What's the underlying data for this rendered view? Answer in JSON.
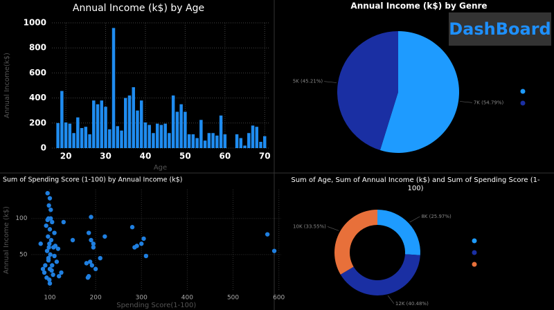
{
  "badge": "DashBoard",
  "chart_data": [
    {
      "type": "bar",
      "title": "Annual Income (k$) by Age",
      "x_label": "Age",
      "y_label": "Annual Income(k$)",
      "color": "#1f8cf0",
      "x": [
        18,
        19,
        20,
        21,
        22,
        23,
        24,
        25,
        26,
        27,
        28,
        29,
        30,
        31,
        32,
        33,
        34,
        35,
        36,
        37,
        38,
        39,
        40,
        41,
        42,
        43,
        44,
        45,
        46,
        47,
        48,
        49,
        50,
        51,
        52,
        53,
        54,
        55,
        56,
        57,
        58,
        59,
        60,
        63,
        64,
        65,
        66,
        67,
        68,
        69,
        70
      ],
      "values": [
        200,
        456,
        205,
        195,
        120,
        245,
        160,
        170,
        110,
        380,
        350,
        380,
        330,
        150,
        959,
        175,
        140,
        400,
        420,
        486,
        300,
        380,
        205,
        185,
        120,
        195,
        185,
        195,
        120,
        420,
        290,
        350,
        290,
        110,
        110,
        80,
        225,
        60,
        120,
        120,
        100,
        260,
        110,
        110,
        80,
        20,
        120,
        180,
        170,
        50,
        95
      ],
      "xlim": [
        16.5,
        71
      ],
      "xticks": [
        20,
        30,
        40,
        50,
        60,
        70
      ],
      "ylim": [
        0,
        1000
      ],
      "yticks": [
        0,
        200,
        400,
        600,
        800,
        1000
      ],
      "grid": true
    },
    {
      "type": "pie",
      "title": "Annual Income (k$) by Genre",
      "values": [
        54.79,
        45.21
      ],
      "value_labels": [
        "7K (54.79%)",
        "5K (45.21%)"
      ],
      "colors": [
        "#1e9bff",
        "#1a2fa3"
      ]
    },
    {
      "type": "scatter",
      "title": "Sum of Spending Score (1-100) by Annual Income (k$)",
      "x_label": "Spending Score(1-100)",
      "y_label": "Annual Income (k$)",
      "color": "#1f7fe0",
      "x": [
        95,
        100,
        98,
        102,
        97,
        105,
        92,
        100,
        110,
        96,
        103,
        99,
        108,
        94,
        101,
        97,
        115,
        90,
        85,
        88,
        120,
        125,
        100,
        105,
        98,
        112,
        80,
        95,
        102,
        130,
        118,
        99,
        93,
        107,
        104,
        150,
        185,
        190,
        195,
        188,
        192,
        200,
        185,
        210,
        190,
        195,
        220,
        280,
        290,
        300,
        305,
        310,
        285,
        575,
        590,
        100,
        97,
        110,
        180,
        183
      ],
      "y": [
        135,
        128,
        118,
        112,
        100,
        95,
        90,
        85,
        80,
        75,
        70,
        65,
        60,
        55,
        50,
        45,
        40,
        35,
        30,
        25,
        20,
        25,
        30,
        35,
        60,
        62,
        65,
        98,
        100,
        95,
        58,
        15,
        18,
        22,
        28,
        70,
        80,
        70,
        65,
        40,
        35,
        30,
        20,
        45,
        102,
        60,
        75,
        88,
        62,
        65,
        72,
        48,
        60,
        78,
        55,
        10,
        42,
        48,
        38,
        18
      ],
      "xlim": [
        60,
        605
      ],
      "xticks": [
        100,
        200,
        300,
        400,
        500,
        600
      ],
      "ylim": [
        0,
        140
      ],
      "yticks": [
        50,
        100
      ],
      "grid": true
    },
    {
      "type": "donut",
      "title": "Sum of Age, Sum of Annual Income (k$) and Sum of Spending Score (1-100)",
      "values": [
        25.97,
        40.48,
        33.55
      ],
      "value_labels": [
        "8K (25.97%)",
        "12K (40.48%)",
        "10K (33.55%)"
      ],
      "colors": [
        "#1e9bff",
        "#1a2fa3",
        "#e8703a"
      ]
    }
  ]
}
